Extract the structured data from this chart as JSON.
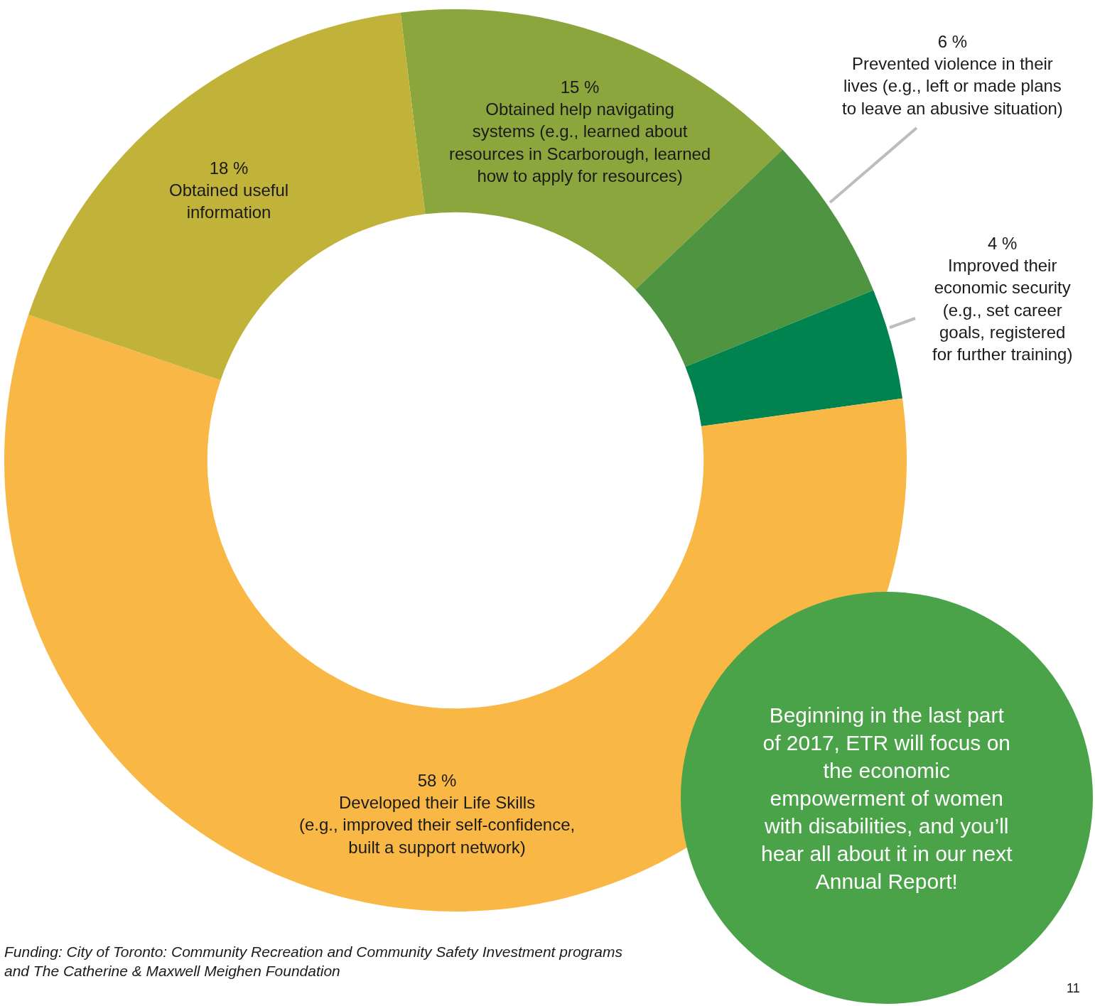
{
  "chart_data": {
    "type": "donut",
    "categories": [
      "Obtained help navigating\nsystems (e.g., learned about\nresources in Scarborough, learned\nhow to apply for resources)",
      "Prevented violence in their\nlives (e.g., left or made plans\nto leave an abusive situation)",
      "Improved their\neconomic security\n(e.g., set career\ngoals, registered\nfor further training)",
      "Developed their Life Skills\n(e.g., improved their self-confidence,\nbuilt a support network)",
      "Obtained useful\ninformation"
    ],
    "values": [
      15,
      6,
      4,
      58,
      18
    ],
    "value_labels": [
      "15 %",
      "6 %",
      "4 %",
      "58 %",
      "18 %"
    ],
    "colors": [
      "#8aa63c",
      "#4f9441",
      "#00834f",
      "#f9b845",
      "#c1b23a"
    ],
    "legend": false,
    "annotations": [
      "Beginning in the last part\nof 2017, ETR will focus on\nthe economic\nempowerment of women\nwith disabilities, and you’ll\nhear all about it in our next\nAnnual Report!",
      "Funding: City of Toronto: Community Recreation and Community Safety Investment programs\nand The Catherine & Maxwell Meighen Foundation",
      "11"
    ]
  }
}
